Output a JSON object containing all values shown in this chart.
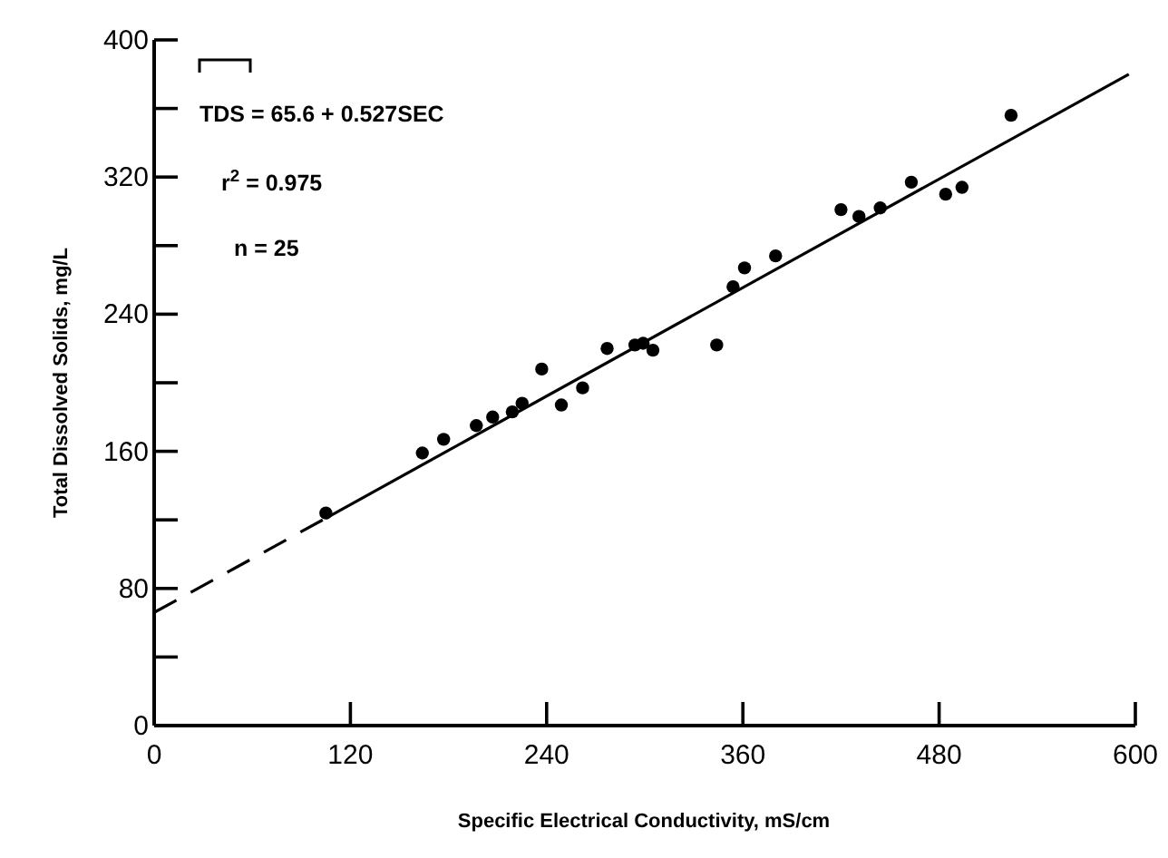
{
  "chart_data": {
    "type": "scatter",
    "xlabel": "Specific Electrical Conductivity,  mS/cm",
    "ylabel": "Total Dissolved Solids, mg/L",
    "xlim": [
      0,
      600
    ],
    "xticks": [
      0,
      120,
      240,
      360,
      480,
      600
    ],
    "ylim": [
      0,
      400
    ],
    "yticks": [
      0,
      {
        "value": 40,
        "label": null
      },
      80,
      {
        "value": 120,
        "label": null
      },
      160,
      {
        "value": 200,
        "label": null
      },
      240,
      {
        "value": 280,
        "label": null
      },
      320,
      {
        "value": 360,
        "label": null
      },
      400
    ],
    "grid": false,
    "marker": "circle",
    "annotations": [
      "TDS = 65.6 + 0.527SEC",
      "r$^{2}$ = 0.975",
      "n = 25"
    ],
    "series": [
      {
        "color": "#000000",
        "x": [
          105,
          164,
          177,
          197,
          207,
          219,
          225,
          237,
          249,
          262,
          277,
          294,
          299,
          305,
          344,
          354,
          361,
          380,
          420,
          431,
          444,
          463,
          484,
          494,
          524
        ],
        "values": [
          124,
          159,
          167,
          175,
          180,
          183,
          188,
          208,
          187,
          197,
          220,
          222,
          223,
          219,
          222,
          256,
          267,
          274,
          301,
          297,
          302,
          317,
          310,
          314,
          356
        ]
      },
      {
        "type": "line",
        "color": "#000000",
        "marker": "none",
        "line_style": "dashed",
        "x": [
          0,
          105
        ],
        "values": [
          66,
          121
        ]
      },
      {
        "type": "line",
        "color": "#000000",
        "marker": "none",
        "line_style": "solid",
        "x": [
          105,
          596
        ],
        "values": [
          121,
          380
        ]
      }
    ]
  }
}
